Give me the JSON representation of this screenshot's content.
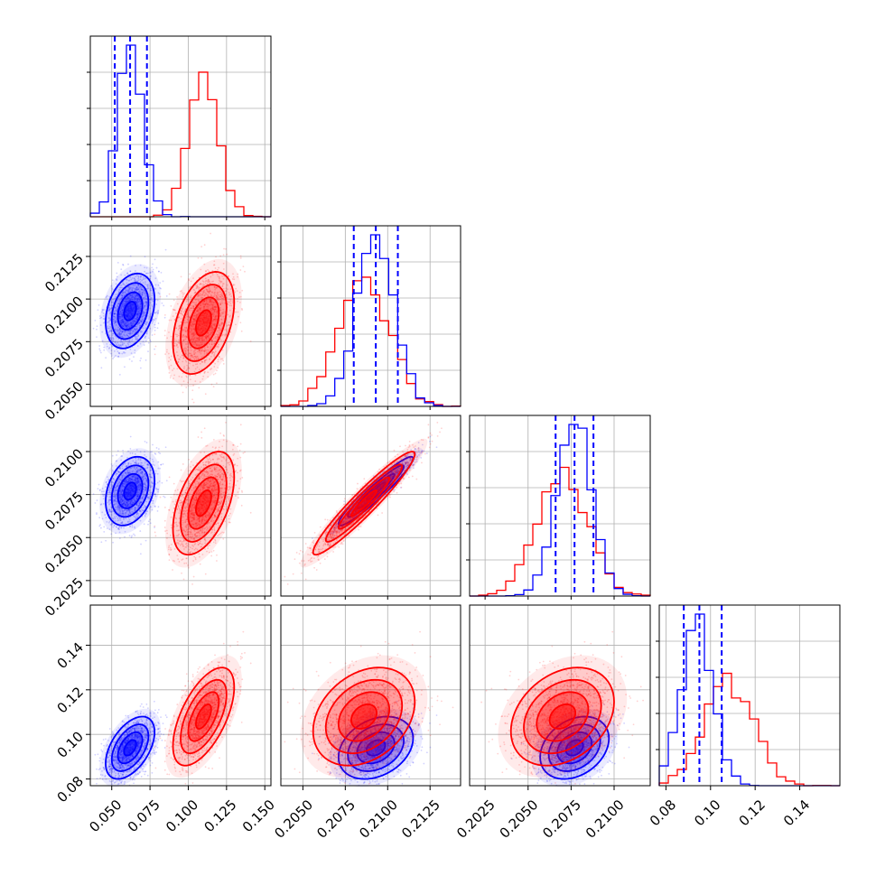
{
  "chart_data": {
    "type": "scatter",
    "title": "",
    "variables": 4,
    "colors": {
      "blue": "#0000ff",
      "red": "#ff0000"
    },
    "grid": true,
    "tick_labels": {
      "p0": [
        "0.050",
        "0.075",
        "0.100",
        "0.125",
        "0.150"
      ],
      "p1": [
        "0.2050",
        "0.2075",
        "0.2100",
        "0.2125"
      ],
      "p2": [
        "0.2025",
        "0.2050",
        "0.2075",
        "0.2100"
      ],
      "p3": [
        "0.08",
        "0.10",
        "0.12",
        "0.14"
      ]
    },
    "axes": {
      "p0": {
        "range": [
          0.036,
          0.154
        ],
        "ticks": [
          0.05,
          0.075,
          0.1,
          0.125,
          0.15
        ]
      },
      "p1": {
        "range": [
          0.2037,
          0.2143
        ],
        "ticks": [
          0.205,
          0.2075,
          0.21,
          0.2125
        ]
      },
      "p2": {
        "range": [
          0.2016,
          0.2121
        ],
        "ticks": [
          0.2025,
          0.205,
          0.2075,
          0.21
        ]
      },
      "p3": {
        "range": [
          0.077,
          0.158
        ],
        "ticks": [
          0.08,
          0.1,
          0.12,
          0.14
        ]
      }
    },
    "series": [
      {
        "color": "blue",
        "mean": [
          0.062,
          0.2093,
          0.2077,
          0.094
        ],
        "sd": [
          0.008,
          0.0011,
          0.001,
          0.007
        ],
        "quantiles": {
          "p0": [
            0.052,
            0.062,
            0.073
          ],
          "p1": [
            0.208,
            0.2093,
            0.2106
          ],
          "p2": [
            0.2066,
            0.2077,
            0.2088
          ],
          "p3": [
            0.088,
            0.095,
            0.105
          ]
        }
      },
      {
        "color": "red",
        "mean": [
          0.11,
          0.2086,
          0.207,
          0.108
        ],
        "sd": [
          0.01,
          0.0015,
          0.0015,
          0.011
        ]
      }
    ],
    "correlations": {
      "blue": {
        "p0_p1": 0.3,
        "p0_p2": 0.3,
        "p0_p3": 0.5,
        "p1_p2": 0.95,
        "p1_p3": 0.3,
        "p2_p3": 0.3
      },
      "red": {
        "p0_p1": 0.4,
        "p0_p2": 0.5,
        "p0_p3": 0.6,
        "p1_p2": 0.95,
        "p1_p3": 0.3,
        "p2_p3": 0.3
      }
    }
  }
}
